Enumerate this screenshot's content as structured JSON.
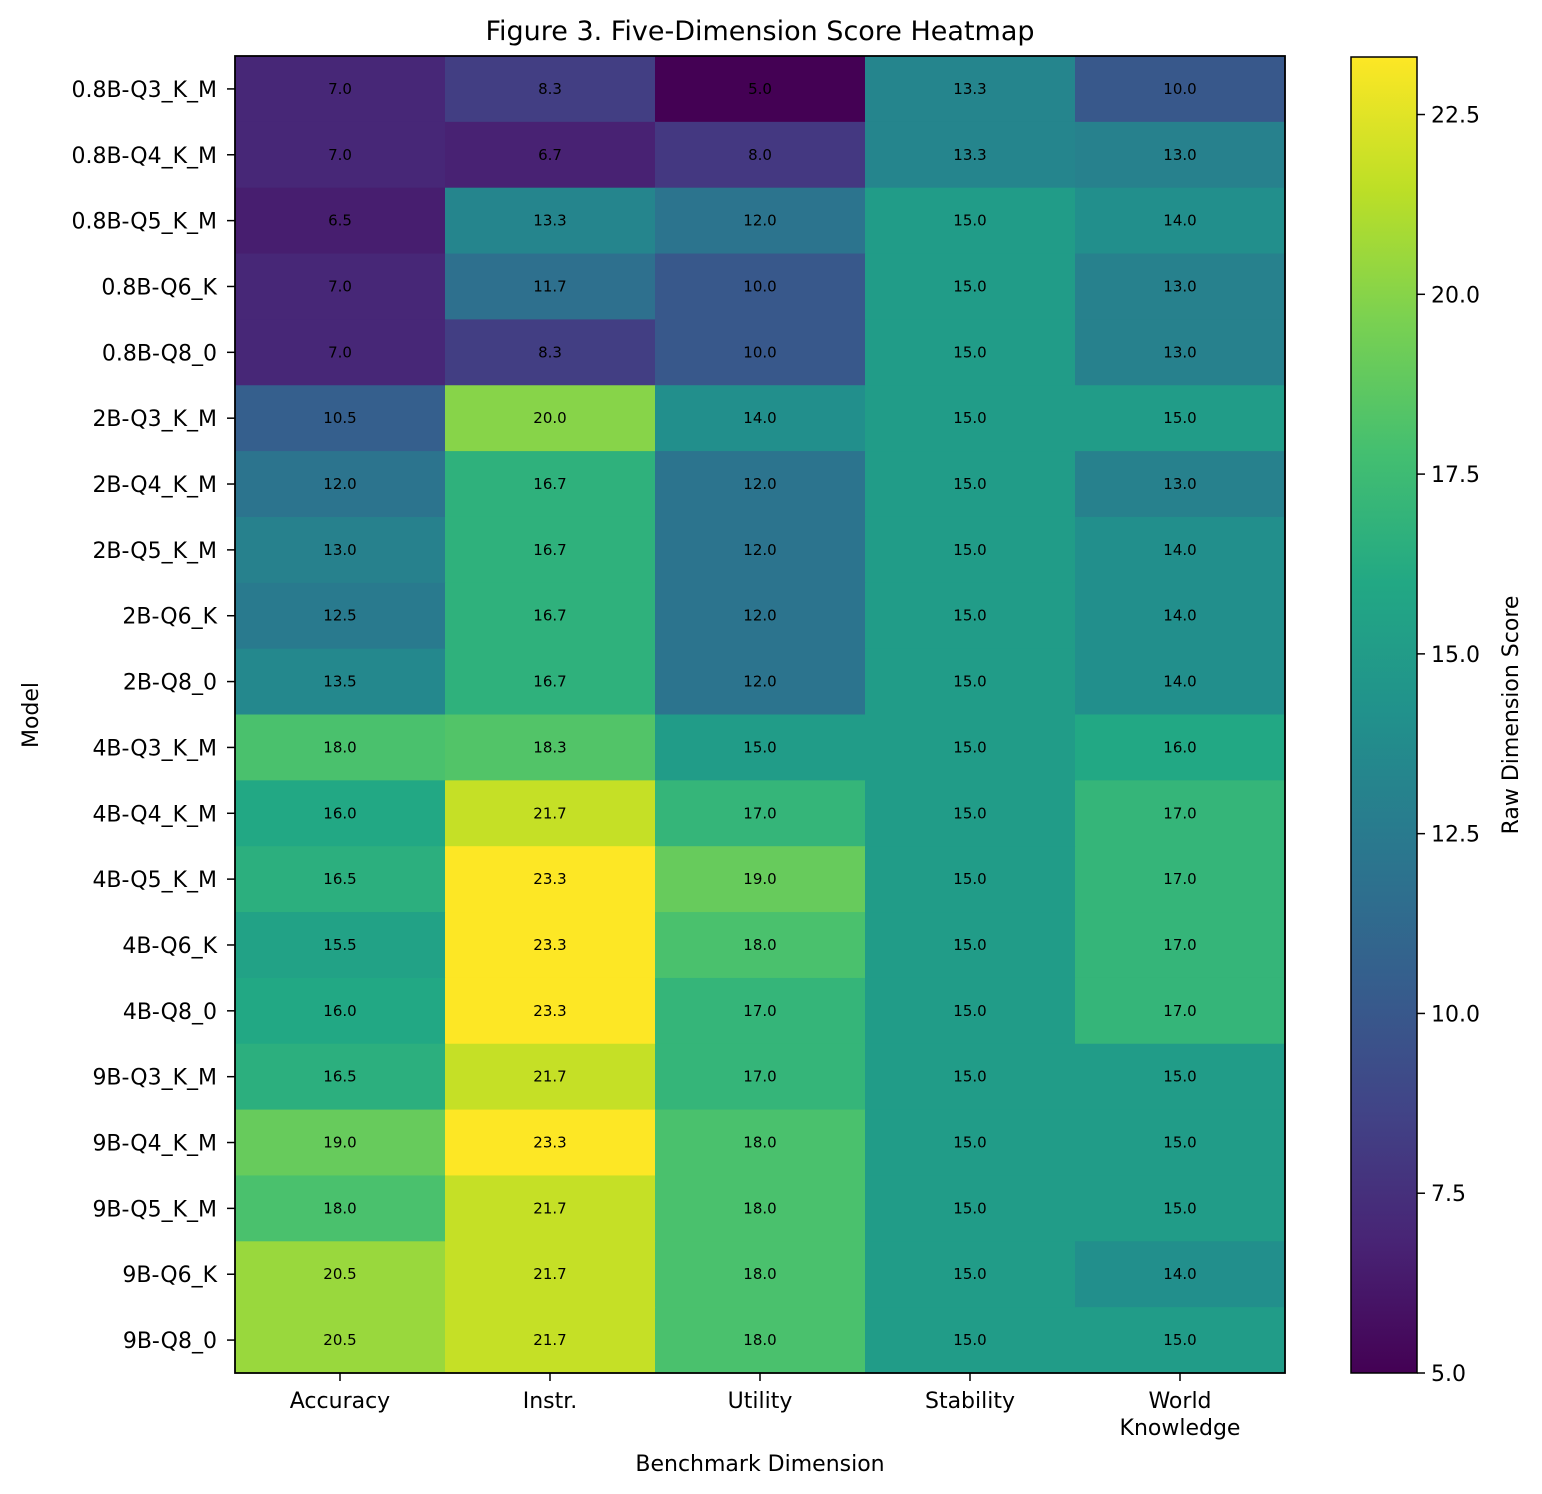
{
  "chart_data": {
    "type": "heatmap",
    "title": "Figure 3. Five-Dimension Score Heatmap",
    "xlabel": "Benchmark Dimension",
    "ylabel": "Model",
    "colorbar_label": "Raw Dimension Score",
    "colormap": "viridis",
    "value_range": [
      5.0,
      23.3
    ],
    "colorbar_ticks": [
      "5.0",
      "7.5",
      "10.0",
      "12.5",
      "15.0",
      "17.5",
      "20.0",
      "22.5"
    ],
    "columns": [
      "Accuracy",
      "Instr.",
      "Utility",
      "Stability",
      "World Knowledge"
    ],
    "rows": [
      {
        "model": "0.8B-Q3_K_M",
        "values": [
          7.0,
          8.3,
          5.0,
          13.3,
          10.0
        ]
      },
      {
        "model": "0.8B-Q4_K_M",
        "values": [
          7.0,
          6.7,
          8.0,
          13.3,
          13.0
        ]
      },
      {
        "model": "0.8B-Q5_K_M",
        "values": [
          6.5,
          13.3,
          12.0,
          15.0,
          14.0
        ]
      },
      {
        "model": "0.8B-Q6_K",
        "values": [
          7.0,
          11.7,
          10.0,
          15.0,
          13.0
        ]
      },
      {
        "model": "0.8B-Q8_0",
        "values": [
          7.0,
          8.3,
          10.0,
          15.0,
          13.0
        ]
      },
      {
        "model": "2B-Q3_K_M",
        "values": [
          10.5,
          20.0,
          14.0,
          15.0,
          15.0
        ]
      },
      {
        "model": "2B-Q4_K_M",
        "values": [
          12.0,
          16.7,
          12.0,
          15.0,
          13.0
        ]
      },
      {
        "model": "2B-Q5_K_M",
        "values": [
          13.0,
          16.7,
          12.0,
          15.0,
          14.0
        ]
      },
      {
        "model": "2B-Q6_K",
        "values": [
          12.5,
          16.7,
          12.0,
          15.0,
          14.0
        ]
      },
      {
        "model": "2B-Q8_0",
        "values": [
          13.5,
          16.7,
          12.0,
          15.0,
          14.0
        ]
      },
      {
        "model": "4B-Q3_K_M",
        "values": [
          18.0,
          18.3,
          15.0,
          15.0,
          16.0
        ]
      },
      {
        "model": "4B-Q4_K_M",
        "values": [
          16.0,
          21.7,
          17.0,
          15.0,
          17.0
        ]
      },
      {
        "model": "4B-Q5_K_M",
        "values": [
          16.5,
          23.3,
          19.0,
          15.0,
          17.0
        ]
      },
      {
        "model": "4B-Q6_K",
        "values": [
          15.5,
          23.3,
          18.0,
          15.0,
          17.0
        ]
      },
      {
        "model": "4B-Q8_0",
        "values": [
          16.0,
          23.3,
          17.0,
          15.0,
          17.0
        ]
      },
      {
        "model": "9B-Q3_K_M",
        "values": [
          16.5,
          21.7,
          17.0,
          15.0,
          15.0
        ]
      },
      {
        "model": "9B-Q4_K_M",
        "values": [
          19.0,
          23.3,
          18.0,
          15.0,
          15.0
        ]
      },
      {
        "model": "9B-Q5_K_M",
        "values": [
          18.0,
          21.7,
          18.0,
          15.0,
          15.0
        ]
      },
      {
        "model": "9B-Q6_K",
        "values": [
          20.5,
          21.7,
          18.0,
          15.0,
          14.0
        ]
      },
      {
        "model": "9B-Q8_0",
        "values": [
          20.5,
          21.7,
          18.0,
          15.0,
          15.0
        ]
      }
    ]
  }
}
